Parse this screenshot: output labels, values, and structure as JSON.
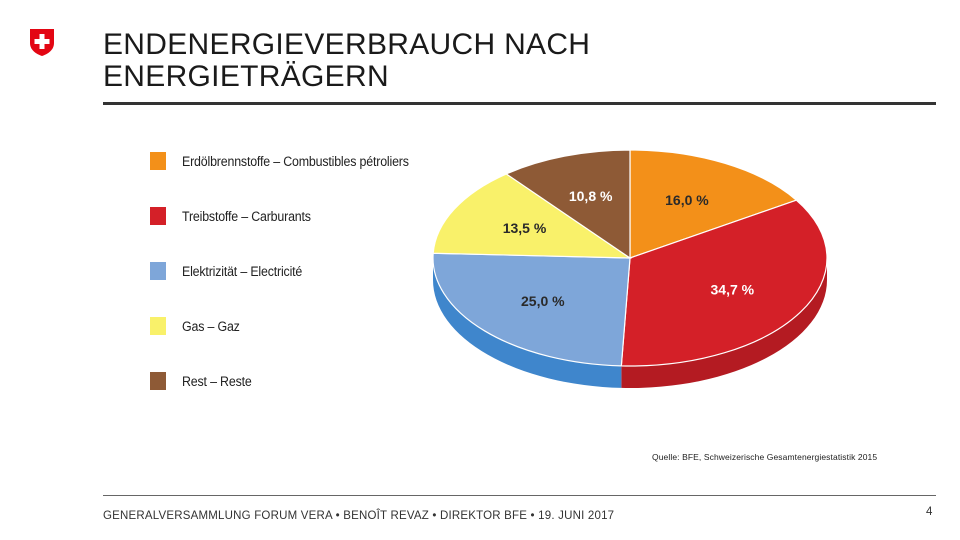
{
  "header": {
    "title_line1": "ENDENERGIEVERBRAUCH NACH",
    "title_line2": "ENERGIETRÄGERN",
    "logo_icon": "swiss-cross-icon"
  },
  "chart_data": {
    "type": "pie",
    "style": "3d",
    "title": "",
    "legend_position": "left",
    "slices": [
      {
        "label": "Erdölbrennstoffe – Combustibles pétroliers",
        "value": 16.0,
        "value_label": "16,0 %",
        "color": "#F39019"
      },
      {
        "label": "Treibstoffe – Carburants",
        "value": 34.7,
        "value_label": "34,7 %",
        "color": "#D42028"
      },
      {
        "label": "Elektrizität – Electricité",
        "value": 25.0,
        "value_label": "25,0 %",
        "color": "#7EA6D9"
      },
      {
        "label": "Gas – Gaz",
        "value": 13.5,
        "value_label": "13,5 %",
        "color": "#F9F16A"
      },
      {
        "label": "Rest – Reste",
        "value": 10.8,
        "value_label": "10,8 %",
        "color": "#8E5A36"
      }
    ]
  },
  "source": "Quelle: BFE, Schweizerische Gesamtenergiestatistik 2015",
  "footer": {
    "text": "GENERALVERSAMMLUNG FORUM VERA • BENOÎT REVAZ • DIREKTOR BFE • 19. JUNI 2017",
    "page_number": "4"
  }
}
